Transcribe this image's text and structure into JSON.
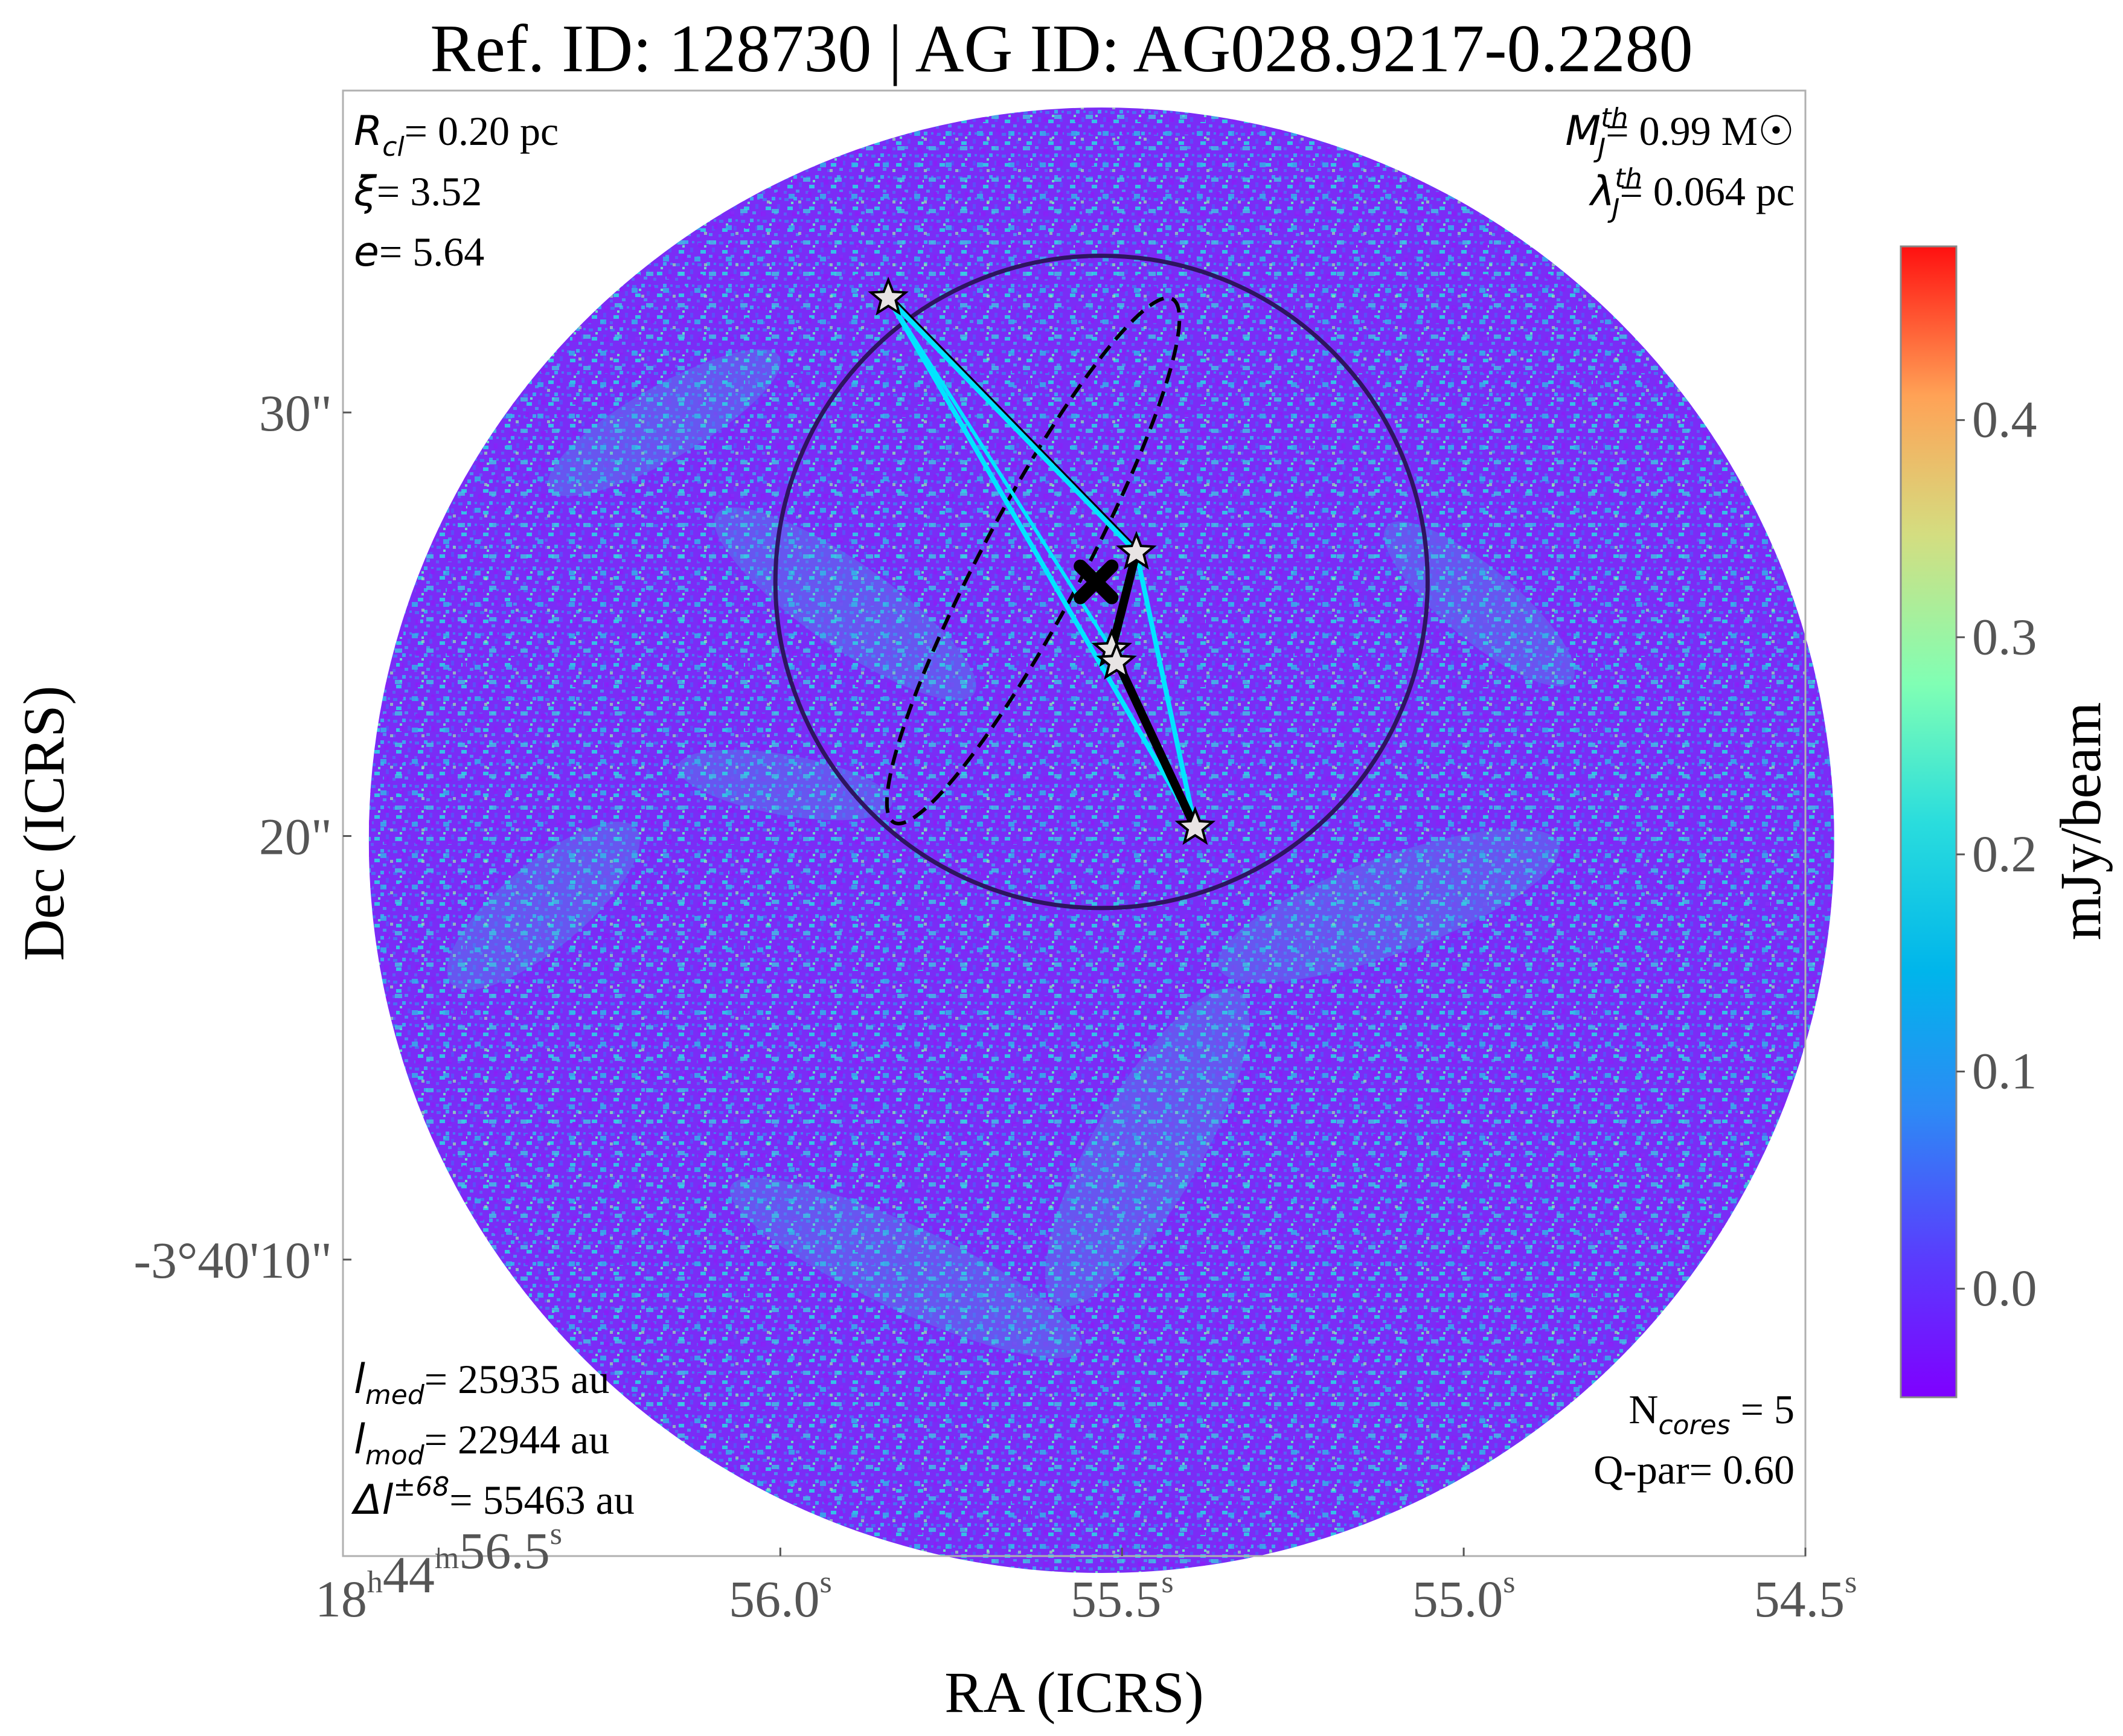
{
  "title": "Ref. ID: 128730 | AG ID: AG028.9217-0.2280",
  "annotations": {
    "top_left": [
      {
        "sym": "R",
        "sub": "cl",
        "value": "= 0.20 pc"
      },
      {
        "sym": "ξ",
        "sub": "",
        "value": "= 3.52"
      },
      {
        "sym": "e",
        "sub": "",
        "value": "= 5.64"
      }
    ],
    "top_right": [
      {
        "sym": "M",
        "sub": "J",
        "sup": "th",
        "value": "= 0.99 M☉"
      },
      {
        "sym": "λ",
        "sub": "J",
        "sup": "th",
        "value": "= 0.064 pc"
      }
    ],
    "bottom_left": [
      {
        "sym": "l",
        "sub": "med",
        "sup": "",
        "value": "= 25935 au"
      },
      {
        "sym": "l",
        "sub": "mod",
        "sup": "",
        "value": "= 22944 au"
      },
      {
        "sym": "Δl",
        "sub": "",
        "sup": "±68",
        "value": "= 55463 au"
      }
    ],
    "bottom_right": [
      {
        "prefix": "N",
        "sub": "cores",
        "value": " = 5"
      },
      {
        "prefix": "Q-par",
        "sub": "",
        "value": "= 0.60"
      }
    ]
  },
  "chart_data": {
    "type": "image",
    "xlabel": "RA (ICRS)",
    "ylabel": "Dec (ICRS)",
    "x_ticks": [
      {
        "base": "18",
        "sup1": "h",
        "mid": "44",
        "sup2": "m",
        "tail": "56.5",
        "sup3": "s",
        "value": 56.5
      },
      {
        "base": "",
        "sup1": "",
        "mid": "",
        "sup2": "",
        "tail": "56.0",
        "sup3": "s",
        "value": 56.0
      },
      {
        "base": "",
        "sup1": "",
        "mid": "",
        "sup2": "",
        "tail": "55.5",
        "sup3": "s",
        "value": 55.5
      },
      {
        "base": "",
        "sup1": "",
        "mid": "",
        "sup2": "",
        "tail": "55.0",
        "sup3": "s",
        "value": 55.0
      },
      {
        "base": "",
        "sup1": "",
        "mid": "",
        "sup2": "",
        "tail": "54.5",
        "sup3": "s",
        "value": 54.5
      }
    ],
    "y_ticks": [
      {
        "label": "-3°40'10\"",
        "value": 10
      },
      {
        "label": "20\"",
        "value": 20
      },
      {
        "label": "30\"",
        "value": 30
      }
    ],
    "xlim": [
      56.64,
      54.5
    ],
    "ylim": [
      37.6,
      3.0
    ],
    "colorbar": {
      "label": "mJy/beam",
      "range": [
        -0.05,
        0.48
      ],
      "ticks": [
        0.0,
        0.1,
        0.2,
        0.3,
        0.4
      ],
      "tick_labels": [
        "0.0",
        "0.1",
        "0.2",
        "0.3",
        "0.4"
      ],
      "colormap": "rainbow"
    },
    "field_of_view": {
      "center_ra_s": 55.53,
      "center_dec_arcsec": 19.9,
      "radius_arcsec": 17.3
    },
    "clump_circle": {
      "center_ra_s": 55.53,
      "center_dec_arcsec": 26.0,
      "radius_arcsec": 7.7
    },
    "centroid": {
      "ra_s": 55.538,
      "dec_arcsec": 26.0
    },
    "cores": [
      {
        "ra_s": 55.393,
        "dec_arcsec": 20.2
      },
      {
        "ra_s": 55.515,
        "dec_arcsec": 24.4
      },
      {
        "ra_s": 55.508,
        "dec_arcsec": 24.1
      },
      {
        "ra_s": 55.479,
        "dec_arcsec": 26.7
      },
      {
        "ra_s": 55.842,
        "dec_arcsec": 32.7
      }
    ],
    "mst_edges": [
      [
        0,
        1
      ],
      [
        1,
        3
      ]
    ],
    "polygon_cyan": [
      [
        55.842,
        32.7
      ],
      [
        55.393,
        20.2
      ],
      [
        55.479,
        26.7
      ],
      [
        55.842,
        32.7
      ]
    ],
    "fit_ellipse": {
      "center_ra_s": 55.63,
      "center_dec_arcsec": 26.5,
      "semi_major_arcsec": 7.0,
      "semi_minor_arcsec": 1.2,
      "angle_deg": -62
    }
  }
}
